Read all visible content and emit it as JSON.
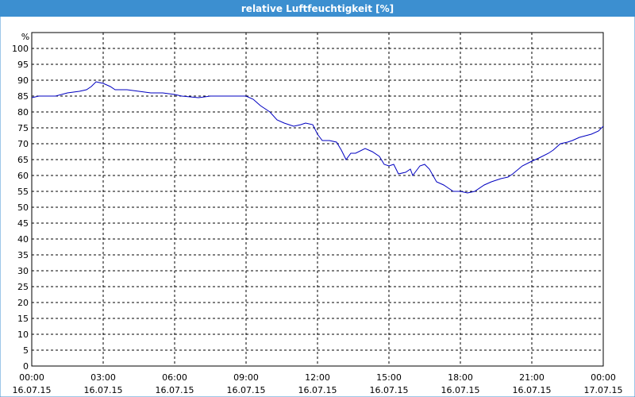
{
  "window_title": "relative Luftfeuchtigkeit [%]",
  "chart_data": {
    "type": "line",
    "y_unit": "%",
    "x": [
      0,
      0.3,
      1.0,
      1.5,
      2.0,
      2.3,
      2.5,
      2.7,
      3.0,
      3.3,
      3.5,
      4.0,
      4.5,
      5.0,
      5.5,
      6.0,
      6.3,
      7.0,
      7.5,
      8.0,
      8.5,
      9.0,
      9.3,
      9.6,
      10.0,
      10.3,
      10.6,
      11.0,
      11.3,
      11.5,
      11.8,
      12.0,
      12.2,
      12.5,
      12.8,
      13.0,
      13.2,
      13.4,
      13.6,
      14.0,
      14.3,
      14.6,
      14.8,
      15.0,
      15.2,
      15.4,
      15.7,
      15.9,
      16.0,
      16.3,
      16.5,
      16.7,
      17.0,
      17.3,
      17.5,
      17.7,
      18.0,
      18.3,
      18.6,
      19.0,
      19.3,
      19.7,
      20.0,
      20.2,
      20.6,
      21.0,
      21.3,
      21.7,
      21.9,
      22.2,
      22.5,
      22.7,
      23.0,
      23.5,
      23.8,
      24.0
    ],
    "series": [
      {
        "name": "relative Luftfeuchtigkeit",
        "color": "#0000c0",
        "values": [
          84.5,
          85,
          85,
          86,
          86.5,
          87,
          88,
          89.5,
          89,
          88,
          87,
          87,
          86.5,
          86,
          86,
          85.5,
          85,
          84.5,
          85,
          85,
          85,
          85,
          84,
          82,
          80,
          77.5,
          76.5,
          75.5,
          76,
          76.5,
          76,
          73,
          71,
          71,
          70.5,
          68,
          65,
          67,
          67,
          68.5,
          67.5,
          66,
          63.5,
          63,
          63.5,
          60.5,
          61,
          62,
          60,
          63,
          63.5,
          62,
          58,
          57,
          56,
          55,
          55,
          54.5,
          55,
          57,
          58,
          59,
          59.5,
          60.5,
          63,
          64.5,
          65.5,
          67,
          68,
          70,
          70.5,
          71,
          72,
          73,
          74,
          75.5
        ]
      }
    ],
    "xlim": [
      0,
      24
    ],
    "xticks": [
      {
        "value": 0,
        "label": "00:00",
        "date": "16.07.15"
      },
      {
        "value": 3,
        "label": "03:00",
        "date": "16.07.15"
      },
      {
        "value": 6,
        "label": "06:00",
        "date": "16.07.15"
      },
      {
        "value": 9,
        "label": "09:00",
        "date": "16.07.15"
      },
      {
        "value": 12,
        "label": "12:00",
        "date": "16.07.15"
      },
      {
        "value": 15,
        "label": "15:00",
        "date": "16.07.15"
      },
      {
        "value": 18,
        "label": "18:00",
        "date": "16.07.15"
      },
      {
        "value": 21,
        "label": "21:00",
        "date": "16.07.15"
      },
      {
        "value": 24,
        "label": "00:00",
        "date": "17.07.15"
      }
    ],
    "ylim": [
      0,
      105
    ],
    "yticks": [
      0,
      5,
      10,
      15,
      20,
      25,
      30,
      35,
      40,
      45,
      50,
      55,
      60,
      65,
      70,
      75,
      80,
      85,
      90,
      95,
      100
    ],
    "grid": true
  }
}
